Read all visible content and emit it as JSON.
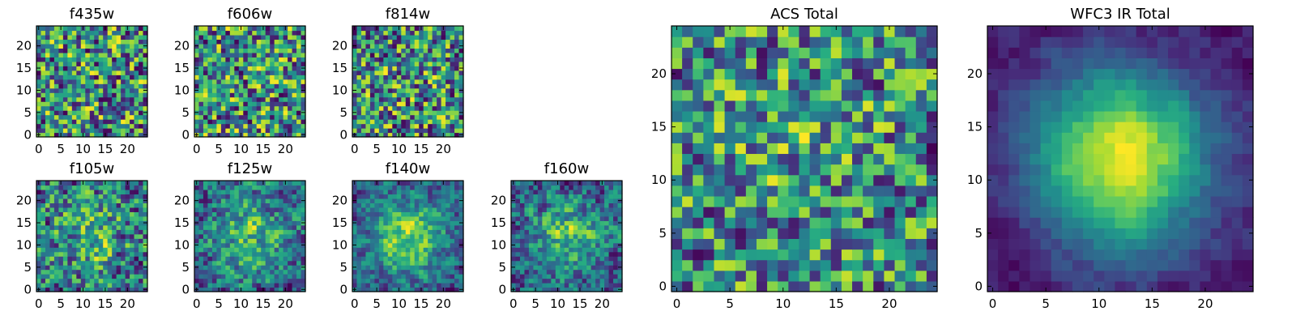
{
  "chart_data": [
    {
      "type": "heatmap",
      "title": "f435w",
      "grid_size": 25,
      "colormap": "viridis",
      "smoothness": 0.0,
      "central_peak": 0.0,
      "xticks": [
        0,
        5,
        10,
        15,
        20
      ],
      "yticks": [
        0,
        5,
        10,
        15,
        20
      ],
      "xlim": [
        0,
        24
      ],
      "ylim": [
        0,
        24
      ]
    },
    {
      "type": "heatmap",
      "title": "f606w",
      "grid_size": 25,
      "colormap": "viridis",
      "smoothness": 0.0,
      "central_peak": 0.0,
      "xticks": [
        0,
        5,
        10,
        15,
        20
      ],
      "yticks": [
        0,
        5,
        10,
        15,
        20
      ],
      "xlim": [
        0,
        24
      ],
      "ylim": [
        0,
        24
      ]
    },
    {
      "type": "heatmap",
      "title": "f814w",
      "grid_size": 25,
      "colormap": "viridis",
      "smoothness": 0.0,
      "central_peak": 0.05,
      "xticks": [
        0,
        5,
        10,
        15,
        20
      ],
      "yticks": [
        0,
        5,
        10,
        15,
        20
      ],
      "xlim": [
        0,
        24
      ],
      "ylim": [
        0,
        24
      ]
    },
    {
      "type": "heatmap",
      "title": "f105w",
      "grid_size": 25,
      "colormap": "viridis",
      "smoothness": 0.3,
      "central_peak": 0.2,
      "xticks": [
        0,
        5,
        10,
        15,
        20
      ],
      "yticks": [
        0,
        5,
        10,
        15,
        20
      ],
      "xlim": [
        0,
        24
      ],
      "ylim": [
        0,
        24
      ]
    },
    {
      "type": "heatmap",
      "title": "f125w",
      "grid_size": 25,
      "colormap": "viridis",
      "smoothness": 0.35,
      "central_peak": 0.3,
      "xticks": [
        0,
        5,
        10,
        15,
        20
      ],
      "yticks": [
        0,
        5,
        10,
        15,
        20
      ],
      "xlim": [
        0,
        24
      ],
      "ylim": [
        0,
        24
      ]
    },
    {
      "type": "heatmap",
      "title": "f140w",
      "grid_size": 25,
      "colormap": "viridis",
      "smoothness": 0.4,
      "central_peak": 0.45,
      "xticks": [
        0,
        5,
        10,
        15,
        20
      ],
      "yticks": [
        0,
        5,
        10,
        15,
        20
      ],
      "xlim": [
        0,
        24
      ],
      "ylim": [
        0,
        24
      ]
    },
    {
      "type": "heatmap",
      "title": "f160w",
      "grid_size": 25,
      "colormap": "viridis",
      "smoothness": 0.35,
      "central_peak": 0.35,
      "xticks": [
        0,
        5,
        10,
        15,
        20
      ],
      "yticks": [
        0,
        5,
        10,
        15,
        20
      ],
      "xlim": [
        0,
        24
      ],
      "ylim": [
        0,
        24
      ]
    },
    {
      "type": "heatmap",
      "title": "ACS Total",
      "grid_size": 25,
      "colormap": "viridis",
      "smoothness": 0.15,
      "central_peak": 0.1,
      "xticks": [
        0,
        5,
        10,
        15,
        20
      ],
      "yticks": [
        0,
        5,
        10,
        15,
        20
      ],
      "xlim": [
        0,
        24
      ],
      "ylim": [
        0,
        24
      ]
    },
    {
      "type": "heatmap",
      "title": "WFC3 IR Total",
      "grid_size": 25,
      "colormap": "viridis",
      "smoothness": 0.6,
      "central_peak": 0.75,
      "xticks": [
        0,
        5,
        10,
        15,
        20
      ],
      "yticks": [
        0,
        5,
        10,
        15,
        20
      ],
      "xlim": [
        0,
        24
      ],
      "ylim": [
        0,
        24
      ]
    }
  ]
}
